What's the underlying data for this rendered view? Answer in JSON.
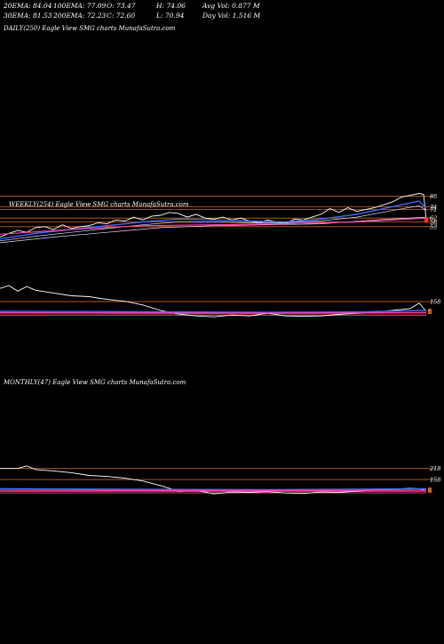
{
  "header": {
    "row1": [
      {
        "label": "20EMA: 84.04"
      },
      {
        "label": "100EMA: 77.09"
      },
      {
        "label": "O: 73.47"
      },
      {
        "label": "H: 74.06"
      },
      {
        "label": "Avg Vol: 0.877  M"
      }
    ],
    "row2": [
      {
        "label": "30EMA: 81.53"
      },
      {
        "label": "200EMA: 72.23"
      },
      {
        "label": "C: 72.60"
      },
      {
        "label": "L: 70.94"
      },
      {
        "label": "Day Vol: 1.516  M"
      }
    ]
  },
  "panels": {
    "daily": {
      "label": "DAILY(250) Eagle   View  SMG charts MunafaSutra.com"
    },
    "weekly": {
      "label": "WEEKLY(254) Eagle   View  SMG charts MunafaSutra.com"
    },
    "monthly": {
      "label": "MONTHLY(47) Eagle   View  SMG charts MunafaSutra.com"
    }
  },
  "colors": {
    "background": "#000000",
    "price": "#ffffff",
    "ema_blue": "#3b6cff",
    "ema_light": "#d8e0ff",
    "ema_pink": "#ff3fa8",
    "ema_red": "#ff3030",
    "level_orange": "#c8641e"
  },
  "chart_data": [
    {
      "type": "line",
      "panel": "weekly",
      "title": "WEEKLY(254) Eagle   View  SMG charts MunafaSutra.com",
      "ylim": [
        20,
        95
      ],
      "levels": [
        85,
        74,
        71,
        62,
        58,
        53
      ],
      "tick_labels": [
        "85",
        "74",
        "71",
        "62",
        "58",
        "53"
      ],
      "series": [
        {
          "role": "price",
          "x": [
            0,
            10,
            20,
            30,
            40,
            50,
            60,
            70,
            80,
            90,
            100,
            110,
            120,
            130,
            140,
            150,
            160,
            170,
            180,
            190,
            200,
            210,
            220,
            230,
            240,
            250,
            260,
            270,
            280,
            290,
            300,
            310,
            320,
            330,
            340,
            350,
            360,
            370,
            380,
            390,
            400,
            410,
            420,
            430,
            440,
            450,
            460,
            470,
            475,
            478
          ],
          "y": [
            42,
            46,
            49,
            47,
            52,
            53,
            50,
            55,
            51,
            53,
            54,
            57,
            56,
            60,
            59,
            63,
            60,
            64,
            65,
            68,
            67,
            63,
            66,
            62,
            61,
            63,
            60,
            62,
            59,
            57,
            60,
            58,
            56,
            61,
            60,
            63,
            66,
            72,
            68,
            73,
            69,
            71,
            73,
            76,
            79,
            84,
            86,
            88,
            87,
            60
          ]
        },
        {
          "role": "ema_fast",
          "x": [
            0,
            40,
            80,
            120,
            160,
            200,
            240,
            280,
            320,
            360,
            400,
            440,
            470,
            478
          ],
          "y": [
            40,
            46,
            50,
            54,
            58,
            61,
            60,
            59,
            58,
            61,
            66,
            74,
            80,
            72
          ]
        },
        {
          "role": "ema_mid",
          "x": [
            0,
            40,
            80,
            120,
            160,
            200,
            240,
            280,
            320,
            360,
            400,
            440,
            470,
            478
          ],
          "y": [
            38,
            43,
            47,
            51,
            55,
            58,
            58,
            57,
            57,
            59,
            63,
            70,
            75,
            70
          ]
        },
        {
          "role": "ema_slow",
          "x": [
            0,
            60,
            120,
            180,
            240,
            300,
            360,
            420,
            478
          ],
          "y": [
            36,
            42,
            47,
            52,
            54,
            55,
            56,
            60,
            63
          ]
        },
        {
          "role": "ema_pink",
          "x": [
            0,
            80,
            160,
            240,
            320,
            400,
            478
          ],
          "y": [
            45,
            50,
            54,
            55,
            56,
            58,
            62
          ]
        }
      ]
    },
    {
      "type": "line",
      "panel": "weekly_indicator",
      "ylim": [
        -40,
        260
      ],
      "levels": [
        158
      ],
      "tick_labels": [
        "158"
      ],
      "series": [
        {
          "role": "price",
          "x": [
            0,
            10,
            20,
            30,
            40,
            60,
            80,
            100,
            120,
            140,
            160,
            180,
            200,
            220,
            240,
            260,
            280,
            300,
            320,
            340,
            360,
            380,
            400,
            420,
            440,
            460,
            470,
            478
          ],
          "y": [
            230,
            245,
            215,
            240,
            220,
            205,
            190,
            185,
            170,
            160,
            140,
            110,
            90,
            80,
            75,
            85,
            80,
            95,
            80,
            78,
            80,
            88,
            95,
            100,
            110,
            120,
            150,
            105
          ]
        },
        {
          "role": "ema_blue",
          "x": [
            0,
            100,
            200,
            300,
            400,
            478
          ],
          "y": [
            105,
            104,
            102,
            100,
            102,
            110
          ]
        },
        {
          "role": "ema_pink",
          "x": [
            0,
            100,
            200,
            300,
            400,
            478
          ],
          "y": [
            98,
            97,
            96,
            96,
            97,
            99
          ]
        }
      ]
    },
    {
      "type": "line",
      "panel": "monthly_indicator",
      "ylim": [
        -40,
        260
      ],
      "levels": [
        218,
        158
      ],
      "tick_labels": [
        "218",
        "158"
      ],
      "series": [
        {
          "role": "price",
          "x": [
            0,
            20,
            30,
            40,
            60,
            80,
            100,
            120,
            140,
            160,
            180,
            200,
            220,
            240,
            260,
            280,
            300,
            320,
            340,
            360,
            380,
            400,
            420,
            440,
            460,
            470,
            478
          ],
          "y": [
            218,
            218,
            232,
            212,
            205,
            195,
            180,
            175,
            165,
            150,
            125,
            95,
            100,
            80,
            90,
            88,
            92,
            85,
            82,
            90,
            88,
            95,
            100,
            105,
            110,
            108,
            100
          ]
        },
        {
          "role": "ema_blue",
          "x": [
            0,
            100,
            200,
            300,
            400,
            478
          ],
          "y": [
            108,
            106,
            104,
            103,
            105,
            108
          ]
        },
        {
          "role": "ema_pink",
          "x": [
            0,
            100,
            200,
            300,
            400,
            478
          ],
          "y": [
            100,
            99,
            98,
            98,
            99,
            100
          ]
        }
      ]
    }
  ]
}
